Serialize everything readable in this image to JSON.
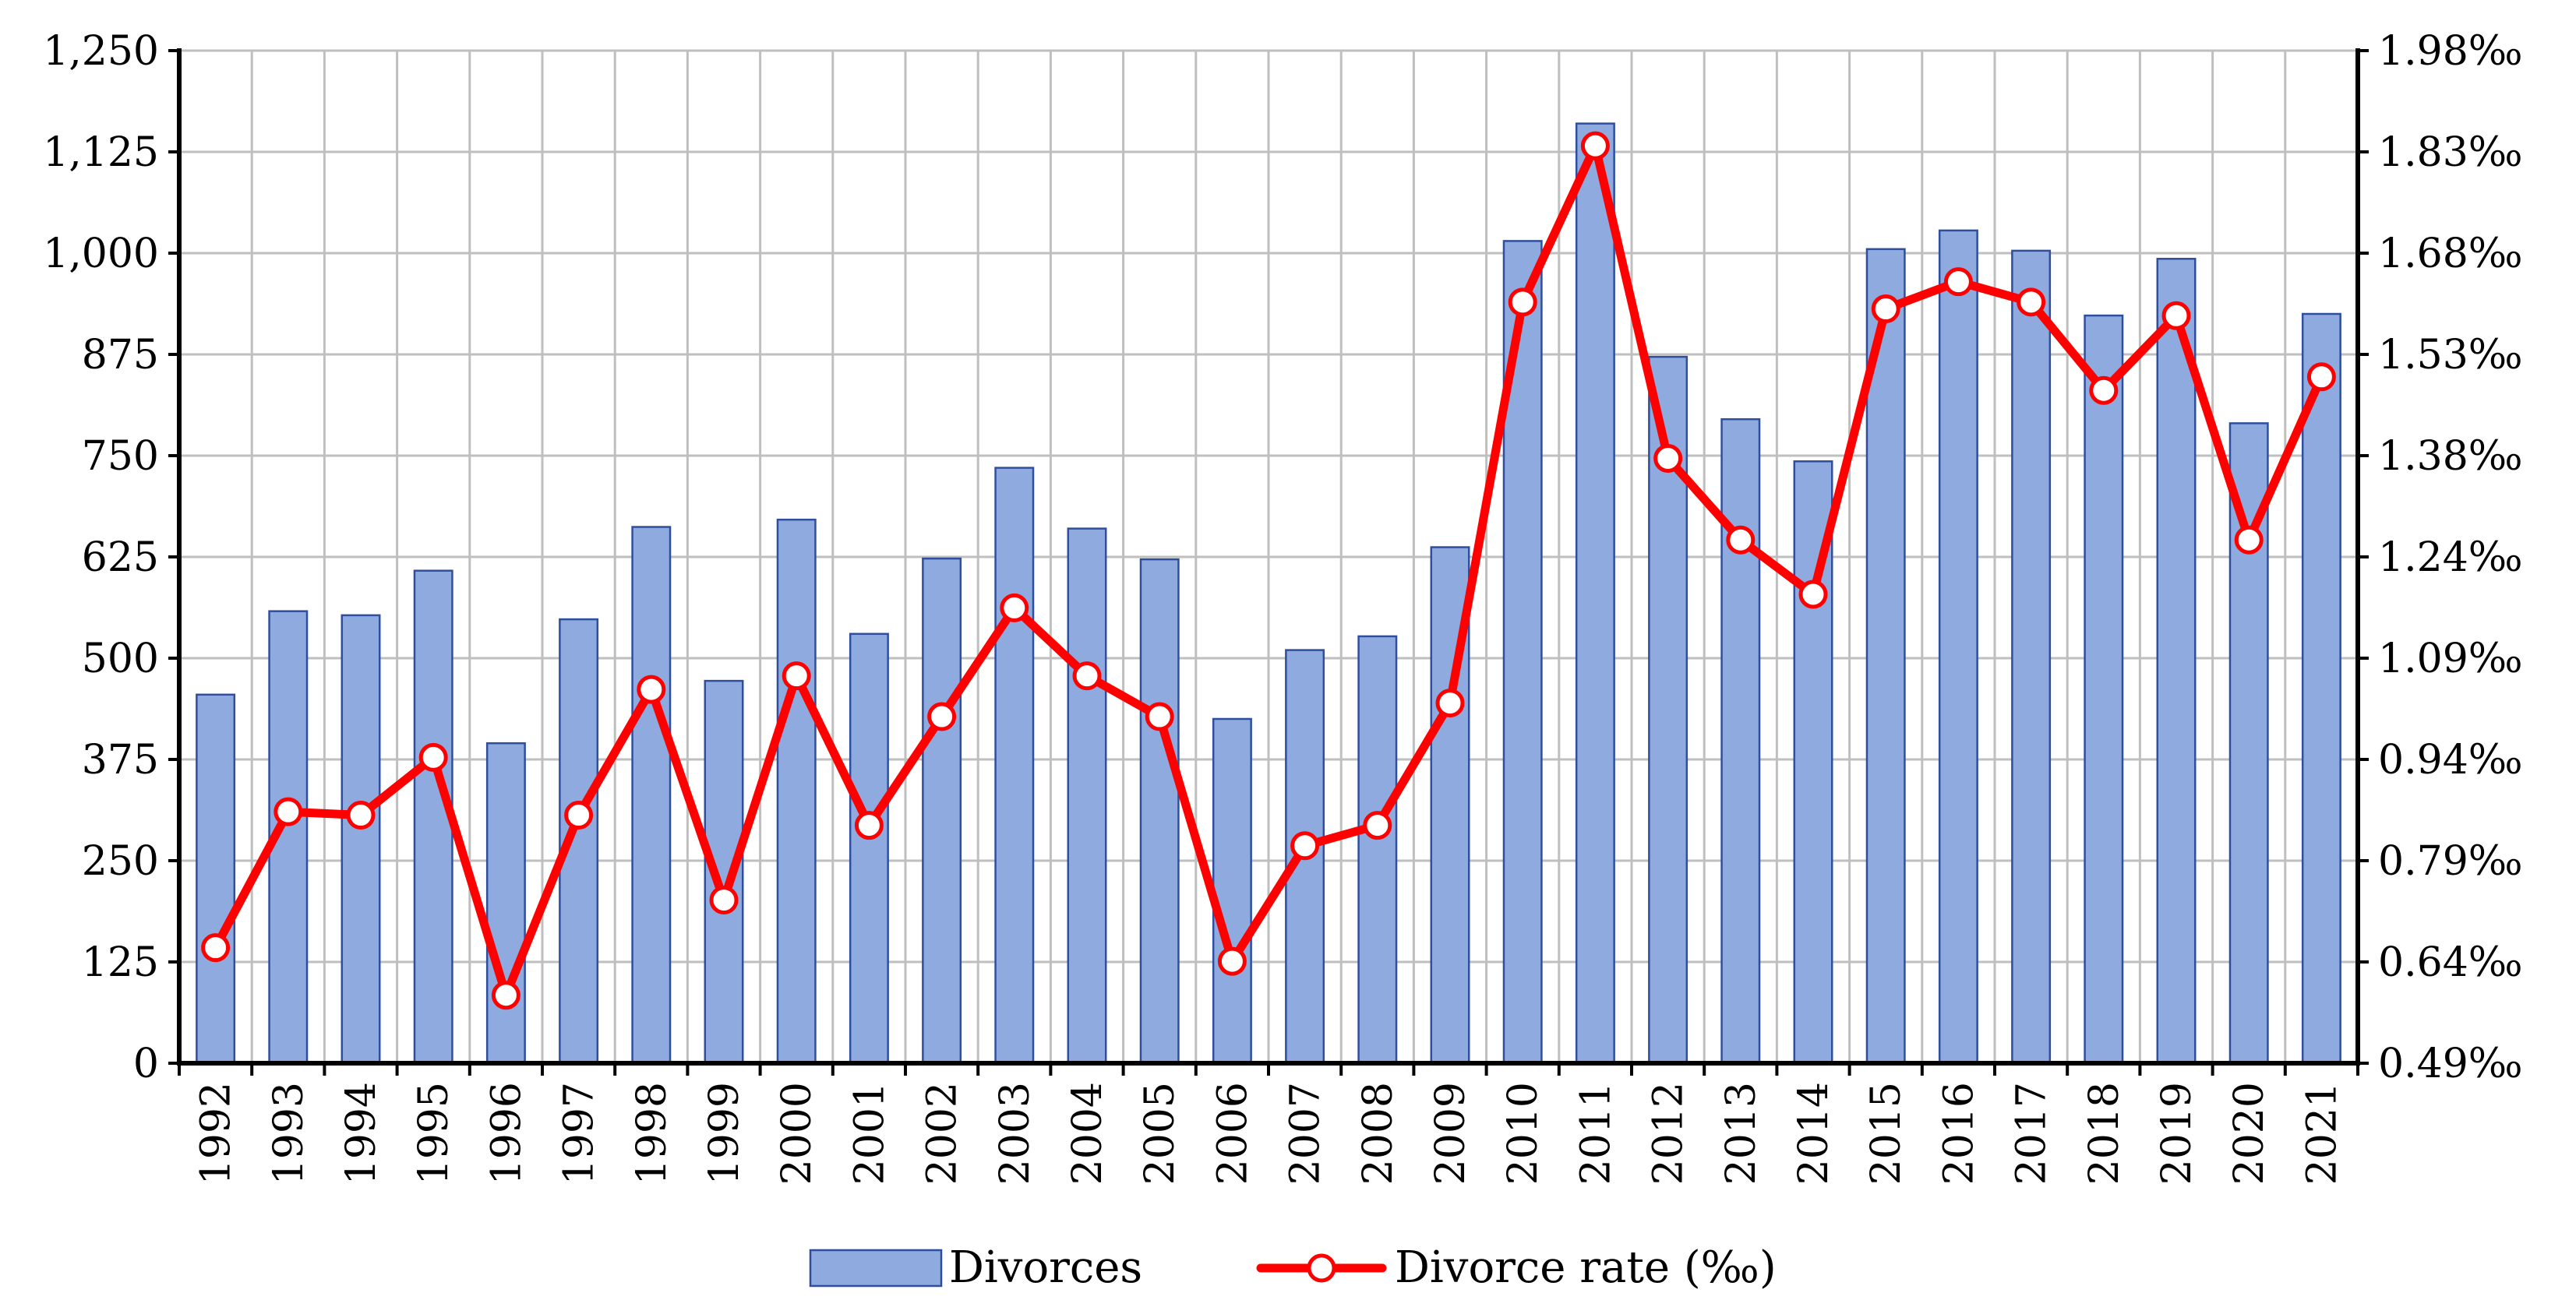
{
  "chart_data": {
    "type": "bar",
    "categories": [
      "1992",
      "1993",
      "1994",
      "1995",
      "1996",
      "1997",
      "1998",
      "1999",
      "2000",
      "2001",
      "2002",
      "2003",
      "2004",
      "2005",
      "2006",
      "2007",
      "2008",
      "2009",
      "2010",
      "2011",
      "2012",
      "2013",
      "2014",
      "2015",
      "2016",
      "2017",
      "2018",
      "2019",
      "2020",
      "2021"
    ],
    "series": [
      {
        "name": "Divorces",
        "type": "bar",
        "axis": "left",
        "color": "#8eaadf",
        "values": [
          455,
          558,
          553,
          608,
          395,
          548,
          662,
          472,
          671,
          530,
          623,
          735,
          660,
          622,
          425,
          510,
          527,
          637,
          1015,
          1160,
          872,
          795,
          743,
          1005,
          1028,
          1003,
          923,
          993,
          790,
          925
        ]
      },
      {
        "name": "Divorce rate (‰)",
        "type": "line",
        "axis": "right",
        "color": "#ff0000",
        "values": [
          0.66,
          0.86,
          0.855,
          0.94,
          0.59,
          0.855,
          1.04,
          0.73,
          1.06,
          0.84,
          1.0,
          1.16,
          1.06,
          1.0,
          0.64,
          0.81,
          0.84,
          1.02,
          1.61,
          1.84,
          1.38,
          1.26,
          1.18,
          1.6,
          1.64,
          1.61,
          1.48,
          1.59,
          1.26,
          1.5
        ]
      }
    ],
    "title": "",
    "xlabel": "",
    "ylabel": "",
    "y_left": {
      "min": 0,
      "max": 1250,
      "ticks": [
        0,
        125,
        250,
        375,
        500,
        625,
        750,
        875,
        1000,
        1125,
        1250
      ],
      "tick_labels": [
        "0",
        "125",
        "250",
        "375",
        "500",
        "625",
        "750",
        "875",
        "1,000",
        "1,125",
        "1,250"
      ]
    },
    "y_right": {
      "min": 0.49,
      "max": 1.98,
      "tick_labels": [
        "0.49‰",
        "0.64‰",
        "0.79‰",
        "0.94‰",
        "1.09‰",
        "1.24‰",
        "1.38‰",
        "1.53‰",
        "1.68‰",
        "1.83‰",
        "1.98‰"
      ]
    },
    "grid": true,
    "legend": {
      "position": "bottom",
      "entries": [
        "Divorces",
        "Divorce rate (‰)"
      ]
    }
  }
}
